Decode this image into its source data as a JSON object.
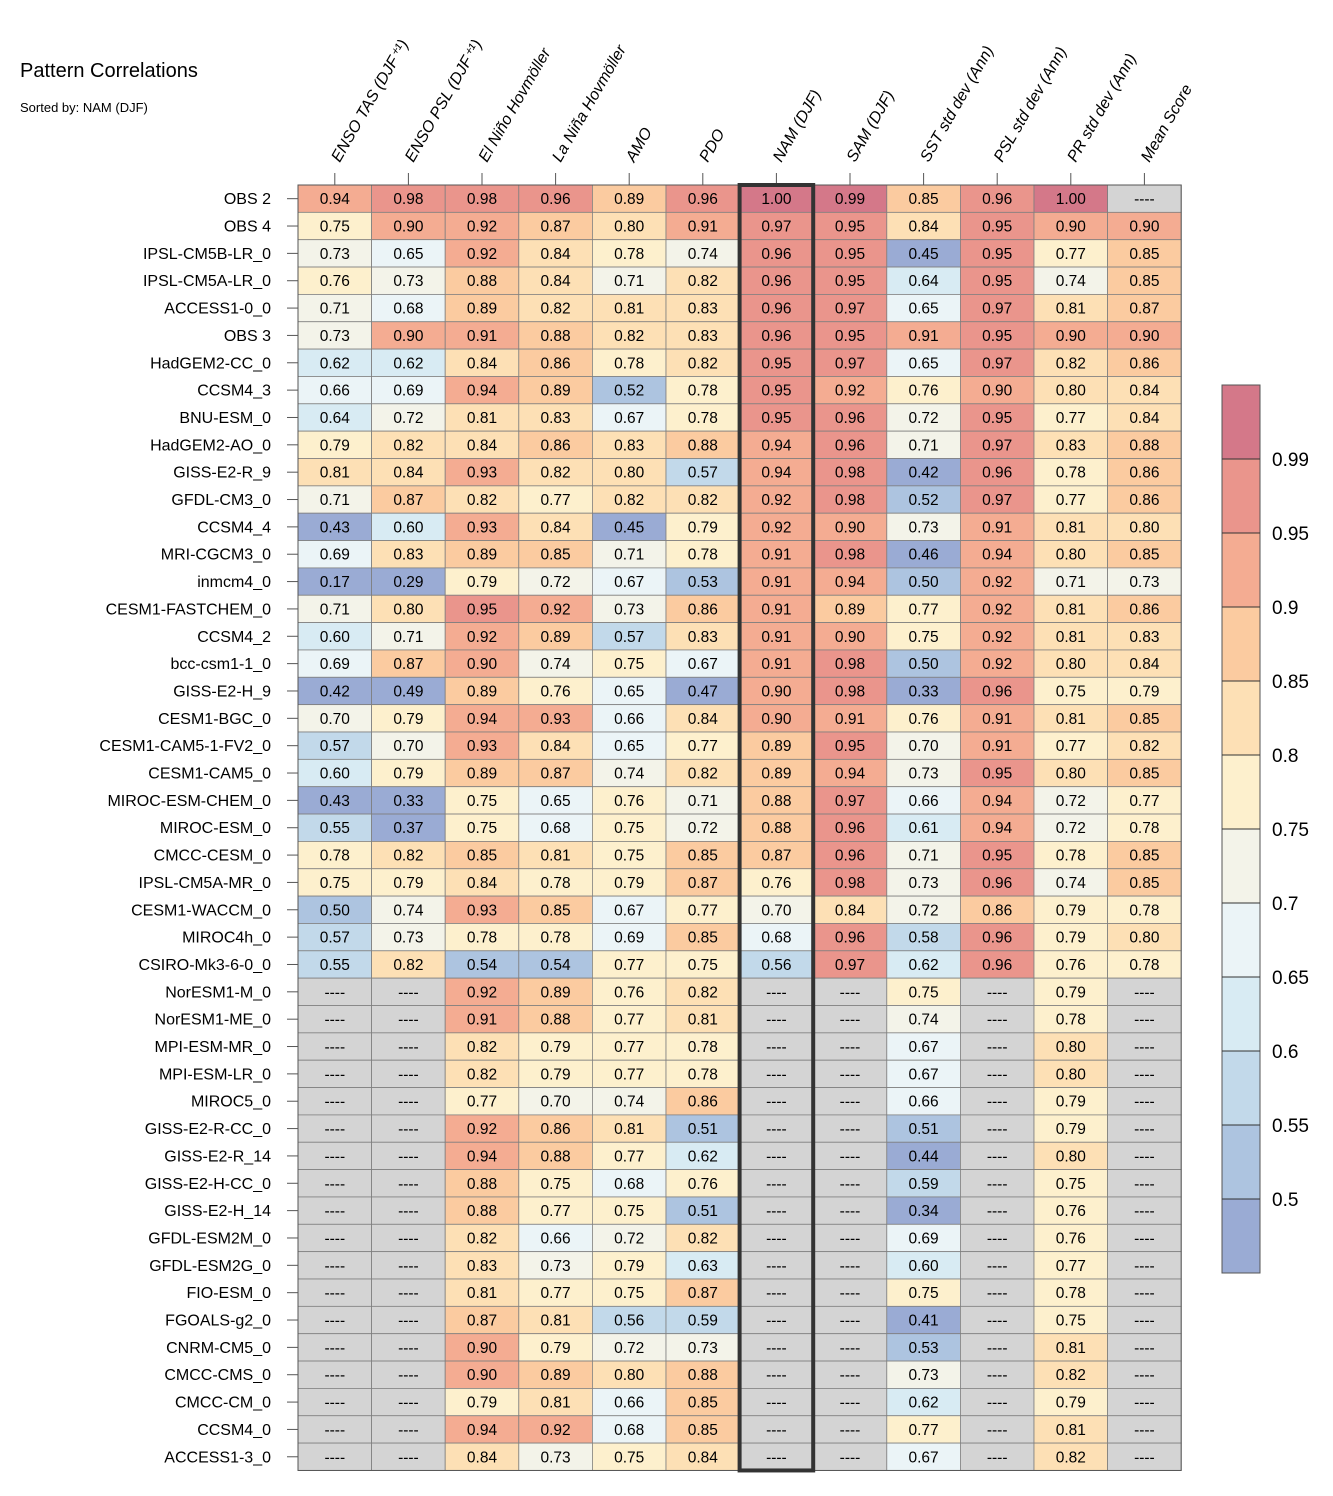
{
  "title": "Pattern Correlations",
  "subtitle": "Sorted by: NAM (DJF)",
  "chart_data": {
    "type": "heatmap",
    "title": "Pattern Correlations",
    "subtitle": "Sorted by: NAM (DJF)",
    "highlighted_column": "NAM (DJF)",
    "missing_marker": "----",
    "columns": [
      "ENSO TAS (DJF⁺¹)",
      "ENSO PSL (DJF⁺¹)",
      "El Niño Hovmöller",
      "La Niña Hovmöller",
      "AMO",
      "PDO",
      "NAM (DJF)",
      "SAM (DJF)",
      "SST std dev (Ann)",
      "PSL std dev (Ann)",
      "PR std dev (Ann)",
      "Mean Score"
    ],
    "rows": [
      {
        "label": "OBS 2",
        "values": [
          0.94,
          0.98,
          0.98,
          0.96,
          0.89,
          0.96,
          1.0,
          0.99,
          0.85,
          0.96,
          1.0,
          null
        ]
      },
      {
        "label": "OBS 4",
        "values": [
          0.75,
          0.9,
          0.92,
          0.87,
          0.8,
          0.91,
          0.97,
          0.95,
          0.84,
          0.95,
          0.9,
          0.9
        ]
      },
      {
        "label": "IPSL-CM5B-LR_0",
        "values": [
          0.73,
          0.65,
          0.92,
          0.84,
          0.78,
          0.74,
          0.96,
          0.95,
          0.45,
          0.95,
          0.77,
          0.85
        ]
      },
      {
        "label": "IPSL-CM5A-LR_0",
        "values": [
          0.76,
          0.73,
          0.88,
          0.84,
          0.71,
          0.82,
          0.96,
          0.95,
          0.64,
          0.95,
          0.74,
          0.85
        ]
      },
      {
        "label": "ACCESS1-0_0",
        "values": [
          0.71,
          0.68,
          0.89,
          0.82,
          0.81,
          0.83,
          0.96,
          0.97,
          0.65,
          0.97,
          0.81,
          0.87
        ]
      },
      {
        "label": "OBS 3",
        "values": [
          0.73,
          0.9,
          0.91,
          0.88,
          0.82,
          0.83,
          0.96,
          0.95,
          0.91,
          0.95,
          0.9,
          0.9
        ]
      },
      {
        "label": "HadGEM2-CC_0",
        "values": [
          0.62,
          0.62,
          0.84,
          0.86,
          0.78,
          0.82,
          0.95,
          0.97,
          0.65,
          0.97,
          0.82,
          0.86
        ]
      },
      {
        "label": "CCSM4_3",
        "values": [
          0.66,
          0.69,
          0.94,
          0.89,
          0.52,
          0.78,
          0.95,
          0.92,
          0.76,
          0.9,
          0.8,
          0.84
        ]
      },
      {
        "label": "BNU-ESM_0",
        "values": [
          0.64,
          0.72,
          0.81,
          0.83,
          0.67,
          0.78,
          0.95,
          0.96,
          0.72,
          0.95,
          0.77,
          0.84
        ]
      },
      {
        "label": "HadGEM2-AO_0",
        "values": [
          0.79,
          0.82,
          0.84,
          0.86,
          0.83,
          0.88,
          0.94,
          0.96,
          0.71,
          0.97,
          0.83,
          0.88
        ]
      },
      {
        "label": "GISS-E2-R_9",
        "values": [
          0.81,
          0.84,
          0.93,
          0.82,
          0.8,
          0.57,
          0.94,
          0.98,
          0.42,
          0.96,
          0.78,
          0.86
        ]
      },
      {
        "label": "GFDL-CM3_0",
        "values": [
          0.71,
          0.87,
          0.82,
          0.77,
          0.82,
          0.82,
          0.92,
          0.98,
          0.52,
          0.97,
          0.77,
          0.86
        ]
      },
      {
        "label": "CCSM4_4",
        "values": [
          0.43,
          0.6,
          0.93,
          0.84,
          0.45,
          0.79,
          0.92,
          0.9,
          0.73,
          0.91,
          0.81,
          0.8
        ]
      },
      {
        "label": "MRI-CGCM3_0",
        "values": [
          0.69,
          0.83,
          0.89,
          0.85,
          0.71,
          0.78,
          0.91,
          0.98,
          0.46,
          0.94,
          0.8,
          0.85
        ]
      },
      {
        "label": "inmcm4_0",
        "values": [
          0.17,
          0.29,
          0.79,
          0.72,
          0.67,
          0.53,
          0.91,
          0.94,
          0.5,
          0.92,
          0.71,
          0.73
        ]
      },
      {
        "label": "CESM1-FASTCHEM_0",
        "values": [
          0.71,
          0.8,
          0.95,
          0.92,
          0.73,
          0.86,
          0.91,
          0.89,
          0.77,
          0.92,
          0.81,
          0.86
        ]
      },
      {
        "label": "CCSM4_2",
        "values": [
          0.6,
          0.71,
          0.92,
          0.89,
          0.57,
          0.83,
          0.91,
          0.9,
          0.75,
          0.92,
          0.81,
          0.83
        ]
      },
      {
        "label": "bcc-csm1-1_0",
        "values": [
          0.69,
          0.87,
          0.9,
          0.74,
          0.75,
          0.67,
          0.91,
          0.98,
          0.5,
          0.92,
          0.8,
          0.84
        ]
      },
      {
        "label": "GISS-E2-H_9",
        "values": [
          0.42,
          0.49,
          0.89,
          0.76,
          0.65,
          0.47,
          0.9,
          0.98,
          0.33,
          0.96,
          0.75,
          0.79
        ]
      },
      {
        "label": "CESM1-BGC_0",
        "values": [
          0.7,
          0.79,
          0.94,
          0.93,
          0.66,
          0.84,
          0.9,
          0.91,
          0.76,
          0.91,
          0.81,
          0.85
        ]
      },
      {
        "label": "CESM1-CAM5-1-FV2_0",
        "values": [
          0.57,
          0.7,
          0.93,
          0.84,
          0.65,
          0.77,
          0.89,
          0.95,
          0.7,
          0.91,
          0.77,
          0.82
        ]
      },
      {
        "label": "CESM1-CAM5_0",
        "values": [
          0.6,
          0.79,
          0.89,
          0.87,
          0.74,
          0.82,
          0.89,
          0.94,
          0.73,
          0.95,
          0.8,
          0.85
        ]
      },
      {
        "label": "MIROC-ESM-CHEM_0",
        "values": [
          0.43,
          0.33,
          0.75,
          0.65,
          0.76,
          0.71,
          0.88,
          0.97,
          0.66,
          0.94,
          0.72,
          0.77
        ]
      },
      {
        "label": "MIROC-ESM_0",
        "values": [
          0.55,
          0.37,
          0.75,
          0.68,
          0.75,
          0.72,
          0.88,
          0.96,
          0.61,
          0.94,
          0.72,
          0.78
        ]
      },
      {
        "label": "CMCC-CESM_0",
        "values": [
          0.78,
          0.82,
          0.85,
          0.81,
          0.75,
          0.85,
          0.87,
          0.96,
          0.71,
          0.95,
          0.78,
          0.85
        ]
      },
      {
        "label": "IPSL-CM5A-MR_0",
        "values": [
          0.75,
          0.79,
          0.84,
          0.78,
          0.79,
          0.87,
          0.76,
          0.98,
          0.73,
          0.96,
          0.74,
          0.85
        ]
      },
      {
        "label": "CESM1-WACCM_0",
        "values": [
          0.5,
          0.74,
          0.93,
          0.85,
          0.67,
          0.77,
          0.7,
          0.84,
          0.72,
          0.86,
          0.79,
          0.78
        ]
      },
      {
        "label": "MIROC4h_0",
        "values": [
          0.57,
          0.73,
          0.78,
          0.78,
          0.69,
          0.85,
          0.68,
          0.96,
          0.58,
          0.96,
          0.79,
          0.8
        ]
      },
      {
        "label": "CSIRO-Mk3-6-0_0",
        "values": [
          0.55,
          0.82,
          0.54,
          0.54,
          0.77,
          0.75,
          0.56,
          0.97,
          0.62,
          0.96,
          0.76,
          0.78
        ]
      },
      {
        "label": "NorESM1-M_0",
        "values": [
          null,
          null,
          0.92,
          0.89,
          0.76,
          0.82,
          null,
          null,
          0.75,
          null,
          0.79,
          null
        ]
      },
      {
        "label": "NorESM1-ME_0",
        "values": [
          null,
          null,
          0.91,
          0.88,
          0.77,
          0.81,
          null,
          null,
          0.74,
          null,
          0.78,
          null
        ]
      },
      {
        "label": "MPI-ESM-MR_0",
        "values": [
          null,
          null,
          0.82,
          0.79,
          0.77,
          0.78,
          null,
          null,
          0.67,
          null,
          0.8,
          null
        ]
      },
      {
        "label": "MPI-ESM-LR_0",
        "values": [
          null,
          null,
          0.82,
          0.79,
          0.77,
          0.78,
          null,
          null,
          0.67,
          null,
          0.8,
          null
        ]
      },
      {
        "label": "MIROC5_0",
        "values": [
          null,
          null,
          0.77,
          0.7,
          0.74,
          0.86,
          null,
          null,
          0.66,
          null,
          0.79,
          null
        ]
      },
      {
        "label": "GISS-E2-R-CC_0",
        "values": [
          null,
          null,
          0.92,
          0.86,
          0.81,
          0.51,
          null,
          null,
          0.51,
          null,
          0.79,
          null
        ]
      },
      {
        "label": "GISS-E2-R_14",
        "values": [
          null,
          null,
          0.94,
          0.88,
          0.77,
          0.62,
          null,
          null,
          0.44,
          null,
          0.8,
          null
        ]
      },
      {
        "label": "GISS-E2-H-CC_0",
        "values": [
          null,
          null,
          0.88,
          0.75,
          0.68,
          0.76,
          null,
          null,
          0.59,
          null,
          0.75,
          null
        ]
      },
      {
        "label": "GISS-E2-H_14",
        "values": [
          null,
          null,
          0.88,
          0.77,
          0.75,
          0.51,
          null,
          null,
          0.34,
          null,
          0.76,
          null
        ]
      },
      {
        "label": "GFDL-ESM2M_0",
        "values": [
          null,
          null,
          0.82,
          0.66,
          0.72,
          0.82,
          null,
          null,
          0.69,
          null,
          0.76,
          null
        ]
      },
      {
        "label": "GFDL-ESM2G_0",
        "values": [
          null,
          null,
          0.83,
          0.73,
          0.79,
          0.63,
          null,
          null,
          0.6,
          null,
          0.77,
          null
        ]
      },
      {
        "label": "FIO-ESM_0",
        "values": [
          null,
          null,
          0.81,
          0.77,
          0.75,
          0.87,
          null,
          null,
          0.75,
          null,
          0.78,
          null
        ]
      },
      {
        "label": "FGOALS-g2_0",
        "values": [
          null,
          null,
          0.87,
          0.81,
          0.56,
          0.59,
          null,
          null,
          0.41,
          null,
          0.75,
          null
        ]
      },
      {
        "label": "CNRM-CM5_0",
        "values": [
          null,
          null,
          0.9,
          0.79,
          0.72,
          0.73,
          null,
          null,
          0.53,
          null,
          0.81,
          null
        ]
      },
      {
        "label": "CMCC-CMS_0",
        "values": [
          null,
          null,
          0.9,
          0.89,
          0.8,
          0.88,
          null,
          null,
          0.73,
          null,
          0.82,
          null
        ]
      },
      {
        "label": "CMCC-CM_0",
        "values": [
          null,
          null,
          0.79,
          0.81,
          0.66,
          0.85,
          null,
          null,
          0.62,
          null,
          0.79,
          null
        ]
      },
      {
        "label": "CCSM4_0",
        "values": [
          null,
          null,
          0.94,
          0.92,
          0.68,
          0.85,
          null,
          null,
          0.77,
          null,
          0.81,
          null
        ]
      },
      {
        "label": "ACCESS1-3_0",
        "values": [
          null,
          null,
          0.84,
          0.73,
          0.75,
          0.84,
          null,
          null,
          0.67,
          null,
          0.82,
          null
        ]
      }
    ],
    "colorbar": {
      "levels": [
        0.5,
        0.55,
        0.6,
        0.65,
        0.7,
        0.75,
        0.8,
        0.85,
        0.9,
        0.95,
        0.99
      ],
      "labels": [
        "0.5",
        "0.55",
        "0.6",
        "0.65",
        "0.7",
        "0.75",
        "0.8",
        "0.85",
        "0.9",
        "0.95",
        "0.99"
      ],
      "colors": [
        "#9aabd4",
        "#adc4e0",
        "#c2d9ea",
        "#d8ebf3",
        "#ebf4f7",
        "#f3f3e9",
        "#fdf0cd",
        "#fde0b5",
        "#fbcba0",
        "#f4ac92",
        "#ea958c",
        "#d47889"
      ],
      "missing_color": "#d4d4d4"
    }
  }
}
